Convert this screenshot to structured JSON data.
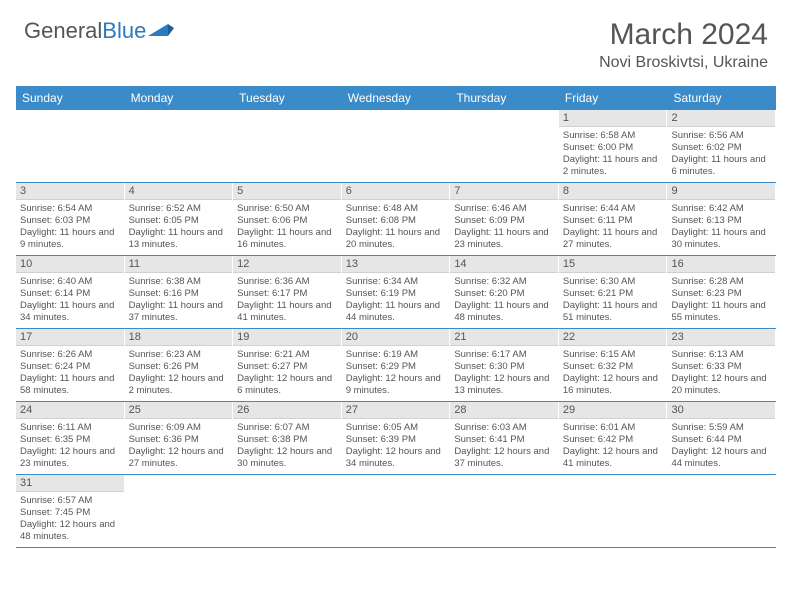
{
  "brand": {
    "part1": "General",
    "part2": "Blue"
  },
  "title": "March 2024",
  "location": "Novi Broskivtsi, Ukraine",
  "colors": {
    "header_bg": "#3b8bc9",
    "header_text": "#ffffff",
    "daynum_bg": "#e6e6e6",
    "text": "#555555",
    "row_border": "#3b8bc9"
  },
  "dayNames": [
    "Sunday",
    "Monday",
    "Tuesday",
    "Wednesday",
    "Thursday",
    "Friday",
    "Saturday"
  ],
  "weeks": [
    [
      {
        "empty": true
      },
      {
        "empty": true
      },
      {
        "empty": true
      },
      {
        "empty": true
      },
      {
        "empty": true
      },
      {
        "n": "1",
        "sr": "6:58 AM",
        "ss": "6:00 PM",
        "dl": "11 hours and 2 minutes."
      },
      {
        "n": "2",
        "sr": "6:56 AM",
        "ss": "6:02 PM",
        "dl": "11 hours and 6 minutes."
      }
    ],
    [
      {
        "n": "3",
        "sr": "6:54 AM",
        "ss": "6:03 PM",
        "dl": "11 hours and 9 minutes."
      },
      {
        "n": "4",
        "sr": "6:52 AM",
        "ss": "6:05 PM",
        "dl": "11 hours and 13 minutes."
      },
      {
        "n": "5",
        "sr": "6:50 AM",
        "ss": "6:06 PM",
        "dl": "11 hours and 16 minutes."
      },
      {
        "n": "6",
        "sr": "6:48 AM",
        "ss": "6:08 PM",
        "dl": "11 hours and 20 minutes."
      },
      {
        "n": "7",
        "sr": "6:46 AM",
        "ss": "6:09 PM",
        "dl": "11 hours and 23 minutes."
      },
      {
        "n": "8",
        "sr": "6:44 AM",
        "ss": "6:11 PM",
        "dl": "11 hours and 27 minutes."
      },
      {
        "n": "9",
        "sr": "6:42 AM",
        "ss": "6:13 PM",
        "dl": "11 hours and 30 minutes."
      }
    ],
    [
      {
        "n": "10",
        "sr": "6:40 AM",
        "ss": "6:14 PM",
        "dl": "11 hours and 34 minutes."
      },
      {
        "n": "11",
        "sr": "6:38 AM",
        "ss": "6:16 PM",
        "dl": "11 hours and 37 minutes."
      },
      {
        "n": "12",
        "sr": "6:36 AM",
        "ss": "6:17 PM",
        "dl": "11 hours and 41 minutes."
      },
      {
        "n": "13",
        "sr": "6:34 AM",
        "ss": "6:19 PM",
        "dl": "11 hours and 44 minutes."
      },
      {
        "n": "14",
        "sr": "6:32 AM",
        "ss": "6:20 PM",
        "dl": "11 hours and 48 minutes."
      },
      {
        "n": "15",
        "sr": "6:30 AM",
        "ss": "6:21 PM",
        "dl": "11 hours and 51 minutes."
      },
      {
        "n": "16",
        "sr": "6:28 AM",
        "ss": "6:23 PM",
        "dl": "11 hours and 55 minutes."
      }
    ],
    [
      {
        "n": "17",
        "sr": "6:26 AM",
        "ss": "6:24 PM",
        "dl": "11 hours and 58 minutes."
      },
      {
        "n": "18",
        "sr": "6:23 AM",
        "ss": "6:26 PM",
        "dl": "12 hours and 2 minutes."
      },
      {
        "n": "19",
        "sr": "6:21 AM",
        "ss": "6:27 PM",
        "dl": "12 hours and 6 minutes."
      },
      {
        "n": "20",
        "sr": "6:19 AM",
        "ss": "6:29 PM",
        "dl": "12 hours and 9 minutes."
      },
      {
        "n": "21",
        "sr": "6:17 AM",
        "ss": "6:30 PM",
        "dl": "12 hours and 13 minutes."
      },
      {
        "n": "22",
        "sr": "6:15 AM",
        "ss": "6:32 PM",
        "dl": "12 hours and 16 minutes."
      },
      {
        "n": "23",
        "sr": "6:13 AM",
        "ss": "6:33 PM",
        "dl": "12 hours and 20 minutes."
      }
    ],
    [
      {
        "n": "24",
        "sr": "6:11 AM",
        "ss": "6:35 PM",
        "dl": "12 hours and 23 minutes."
      },
      {
        "n": "25",
        "sr": "6:09 AM",
        "ss": "6:36 PM",
        "dl": "12 hours and 27 minutes."
      },
      {
        "n": "26",
        "sr": "6:07 AM",
        "ss": "6:38 PM",
        "dl": "12 hours and 30 minutes."
      },
      {
        "n": "27",
        "sr": "6:05 AM",
        "ss": "6:39 PM",
        "dl": "12 hours and 34 minutes."
      },
      {
        "n": "28",
        "sr": "6:03 AM",
        "ss": "6:41 PM",
        "dl": "12 hours and 37 minutes."
      },
      {
        "n": "29",
        "sr": "6:01 AM",
        "ss": "6:42 PM",
        "dl": "12 hours and 41 minutes."
      },
      {
        "n": "30",
        "sr": "5:59 AM",
        "ss": "6:44 PM",
        "dl": "12 hours and 44 minutes."
      }
    ],
    [
      {
        "n": "31",
        "sr": "6:57 AM",
        "ss": "7:45 PM",
        "dl": "12 hours and 48 minutes."
      },
      {
        "empty": true
      },
      {
        "empty": true
      },
      {
        "empty": true
      },
      {
        "empty": true
      },
      {
        "empty": true
      },
      {
        "empty": true
      }
    ]
  ]
}
